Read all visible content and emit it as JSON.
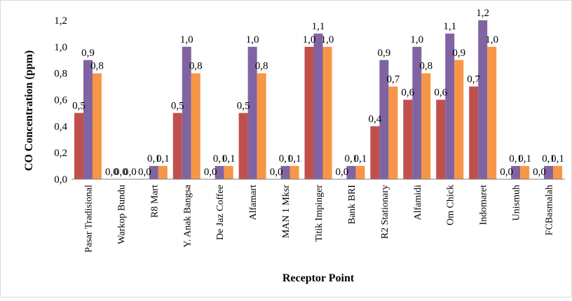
{
  "chart_data": {
    "type": "bar",
    "title": "",
    "xlabel": "Receptor Point",
    "ylabel": "CO Concentration (ppm)",
    "ylim": [
      0,
      1.2
    ],
    "yticks": [
      "0,0",
      "0,2",
      "0,4",
      "0,6",
      "0,8",
      "1,0",
      "1,2"
    ],
    "grid": false,
    "legend": "none",
    "categories": [
      "Pasar Tradisional",
      "Warkop Bundu",
      "R8 Mart",
      "Y. Anak Bangsa",
      "De Jaz Coffee",
      "Alfamart",
      "MAN 1 Mksr",
      "Titik Impinger",
      "Bank BRI",
      "R2 Stationary",
      "Alfamidi",
      "Om Chick",
      "Indomaret",
      "Unismuh",
      "FCBasmalah"
    ],
    "series": [
      {
        "values": [
          0.5,
          0.0,
          0.0,
          0.5,
          0.0,
          0.5,
          0.0,
          1.0,
          0.0,
          0.4,
          0.6,
          0.6,
          0.7,
          0.0,
          0.0
        ],
        "labels": [
          "0,5",
          "0,0",
          "0,0",
          "0,5",
          "0,0",
          "0,5",
          "0,0",
          "1,0",
          "0,0",
          "0,4",
          "0,6",
          "0,6",
          "0,7",
          "0,0",
          "0,0"
        ]
      },
      {
        "values": [
          0.9,
          0.0,
          0.1,
          1.0,
          0.1,
          1.0,
          0.1,
          1.1,
          0.1,
          0.9,
          1.0,
          1.1,
          1.2,
          0.1,
          0.1
        ],
        "labels": [
          "0,9",
          "0,0",
          "0,1",
          "1,0",
          "0,1",
          "1,0",
          "0,1",
          "1,1",
          "0,1",
          "0,9",
          "1,0",
          "1,1",
          "1,2",
          "0,1",
          "0,1"
        ]
      },
      {
        "values": [
          0.8,
          0.0,
          0.1,
          0.8,
          0.1,
          0.8,
          0.1,
          1.0,
          0.1,
          0.7,
          0.8,
          0.9,
          1.0,
          0.1,
          0.1
        ],
        "labels": [
          "0,8",
          "0,0",
          "0,1",
          "0,8",
          "0,1",
          "0,8",
          "0,1",
          "1,0",
          "0,1",
          "0,7",
          "0,8",
          "0,9",
          "1,0",
          "0,1",
          "0,1"
        ]
      }
    ],
    "colors": [
      "#c0504d",
      "#8064a2",
      "#f79646"
    ]
  }
}
